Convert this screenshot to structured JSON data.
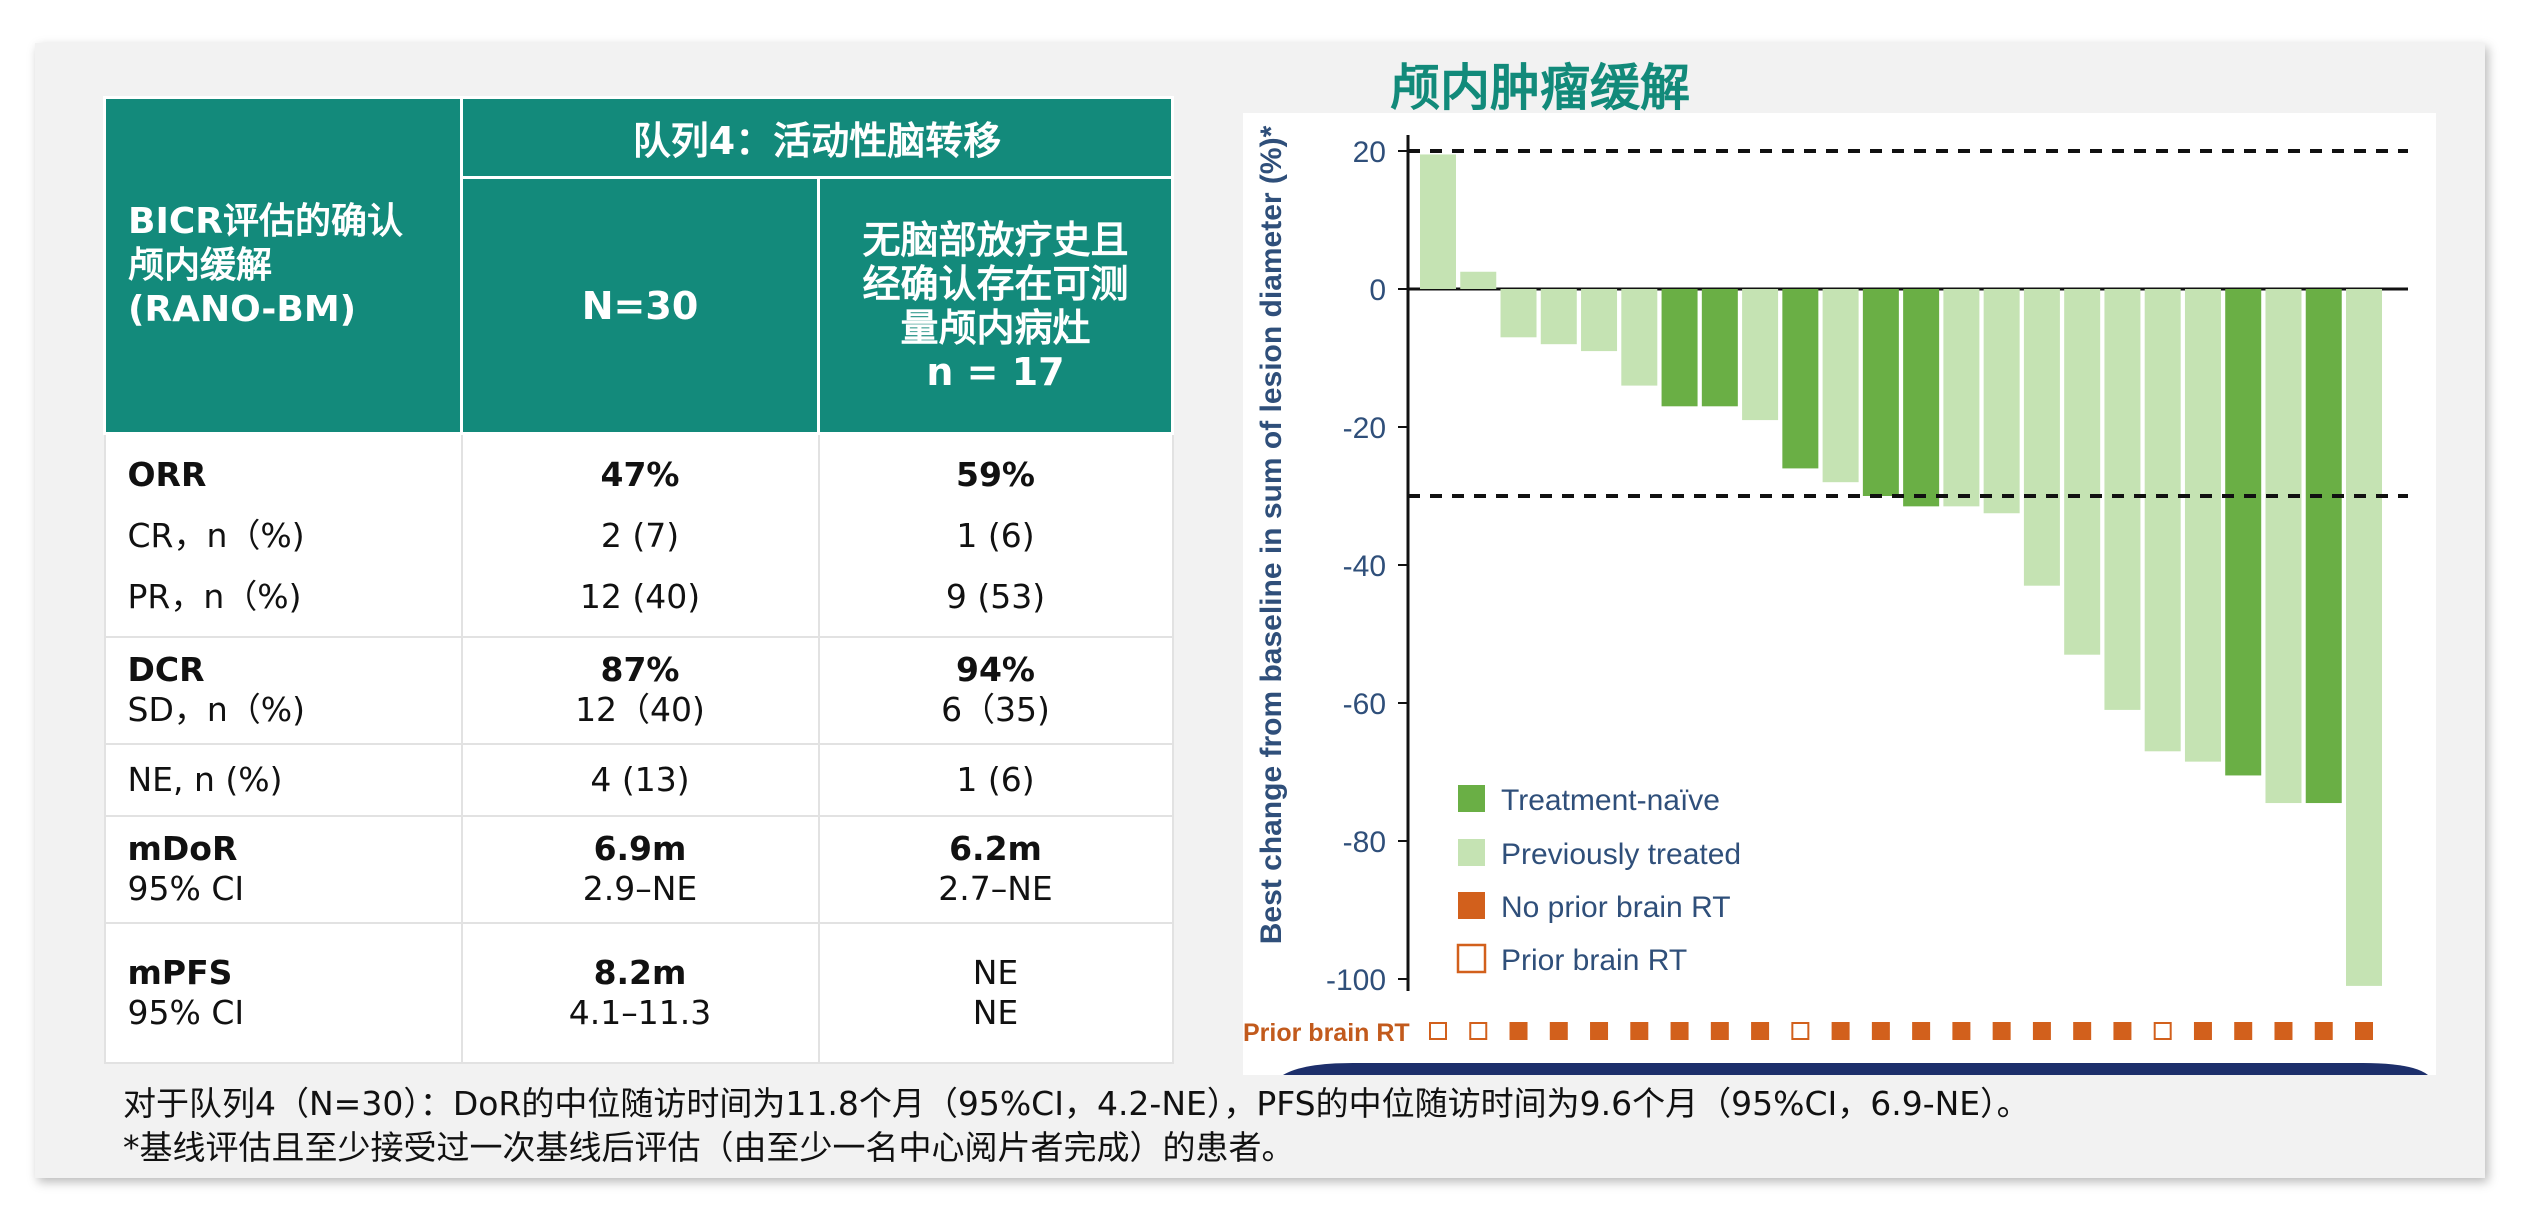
{
  "table": {
    "header": {
      "row_label": [
        "BICR评估的确认",
        "颅内缓解",
        "(RANO-BM)"
      ],
      "cohort": "队列4：活动性脑转移",
      "col1": "N=30",
      "col2": [
        "无脑部放疗史且",
        "经确认存在可测",
        "量颅内病灶",
        "n = 17"
      ]
    },
    "rows": {
      "orr": {
        "label": "ORR",
        "v1": "47%",
        "v2": "59%"
      },
      "cr": {
        "label": "CR，n（%)",
        "v1": "2 (7)",
        "v2": "1 (6)"
      },
      "pr": {
        "label": "PR，n（%)",
        "v1": "12 (40)",
        "v2": "9 (53)"
      },
      "dcr": {
        "label": "DCR",
        "v1": "87%",
        "v2": "94%"
      },
      "sd": {
        "label": "SD，n（%)",
        "v1": "12（40)",
        "v2": "6（35)"
      },
      "ne": {
        "label": "NE, n (%)",
        "v1": "4 (13)",
        "v2": "1 (6)"
      },
      "mdor": {
        "label": "mDoR",
        "v1": "6.9m",
        "v2": "6.2m"
      },
      "mdor_ci": {
        "label": "95% CI",
        "v1": "2.9–NE",
        "v2": "2.7–NE"
      },
      "mpfs": {
        "label": "mPFS",
        "v1": "8.2m",
        "v2": "NE"
      },
      "mpfs_ci": {
        "label": "95% CI",
        "v1": "4.1–11.3",
        "v2": "NE"
      }
    }
  },
  "chart_data": {
    "type": "bar",
    "title": "颅内肿瘤缓解",
    "ylabel": "Best change from baseline in sum of lesion diameter (%)*",
    "ylim": [
      -100,
      20
    ],
    "yticks": [
      20,
      0,
      -20,
      -40,
      -60,
      -80,
      -100
    ],
    "reference_lines": [
      20,
      -30
    ],
    "series": [
      {
        "name": "Treatment-naïve",
        "color": "#6aaf45"
      },
      {
        "name": "Previously treated",
        "color": "#c5e3b3"
      }
    ],
    "rt_series": [
      {
        "name": "No prior brain RT",
        "color": "#d2601c"
      },
      {
        "name": "Prior brain RT",
        "color": "#d2601c"
      }
    ],
    "rt_row_label": "Prior brain RT",
    "values": [
      19.5,
      2.5,
      -7,
      -8,
      -9,
      -14,
      -17,
      -17,
      -19,
      -26,
      -28,
      -30,
      -31.5,
      -31.5,
      -32.5,
      -43,
      -53,
      -61,
      -67,
      -68.5,
      -70.5,
      -74.5,
      -74.5,
      -101
    ],
    "group": [
      "prev",
      "prev",
      "prev",
      "prev",
      "prev",
      "prev",
      "naive",
      "naive",
      "prev",
      "naive",
      "prev",
      "naive",
      "naive",
      "prev",
      "prev",
      "prev",
      "prev",
      "prev",
      "prev",
      "prev",
      "naive",
      "prev",
      "naive",
      "prev"
    ],
    "prior_rt": [
      true,
      true,
      false,
      false,
      false,
      false,
      false,
      false,
      false,
      true,
      false,
      false,
      false,
      false,
      false,
      false,
      false,
      false,
      true,
      false,
      false,
      false,
      false,
      false
    ],
    "legend_position": "bottom-left"
  },
  "footer": {
    "line1": "对于队列4（N=30）：DoR的中位随访时间为11.8个月（95%CI，4.2-NE），PFS的中位随访时间为9.6个月（95%CI，6.9-NE）。",
    "line2": "*基线评估且至少接受过一次基线后评估（由至少一名中心阅片者完成）的患者。"
  }
}
